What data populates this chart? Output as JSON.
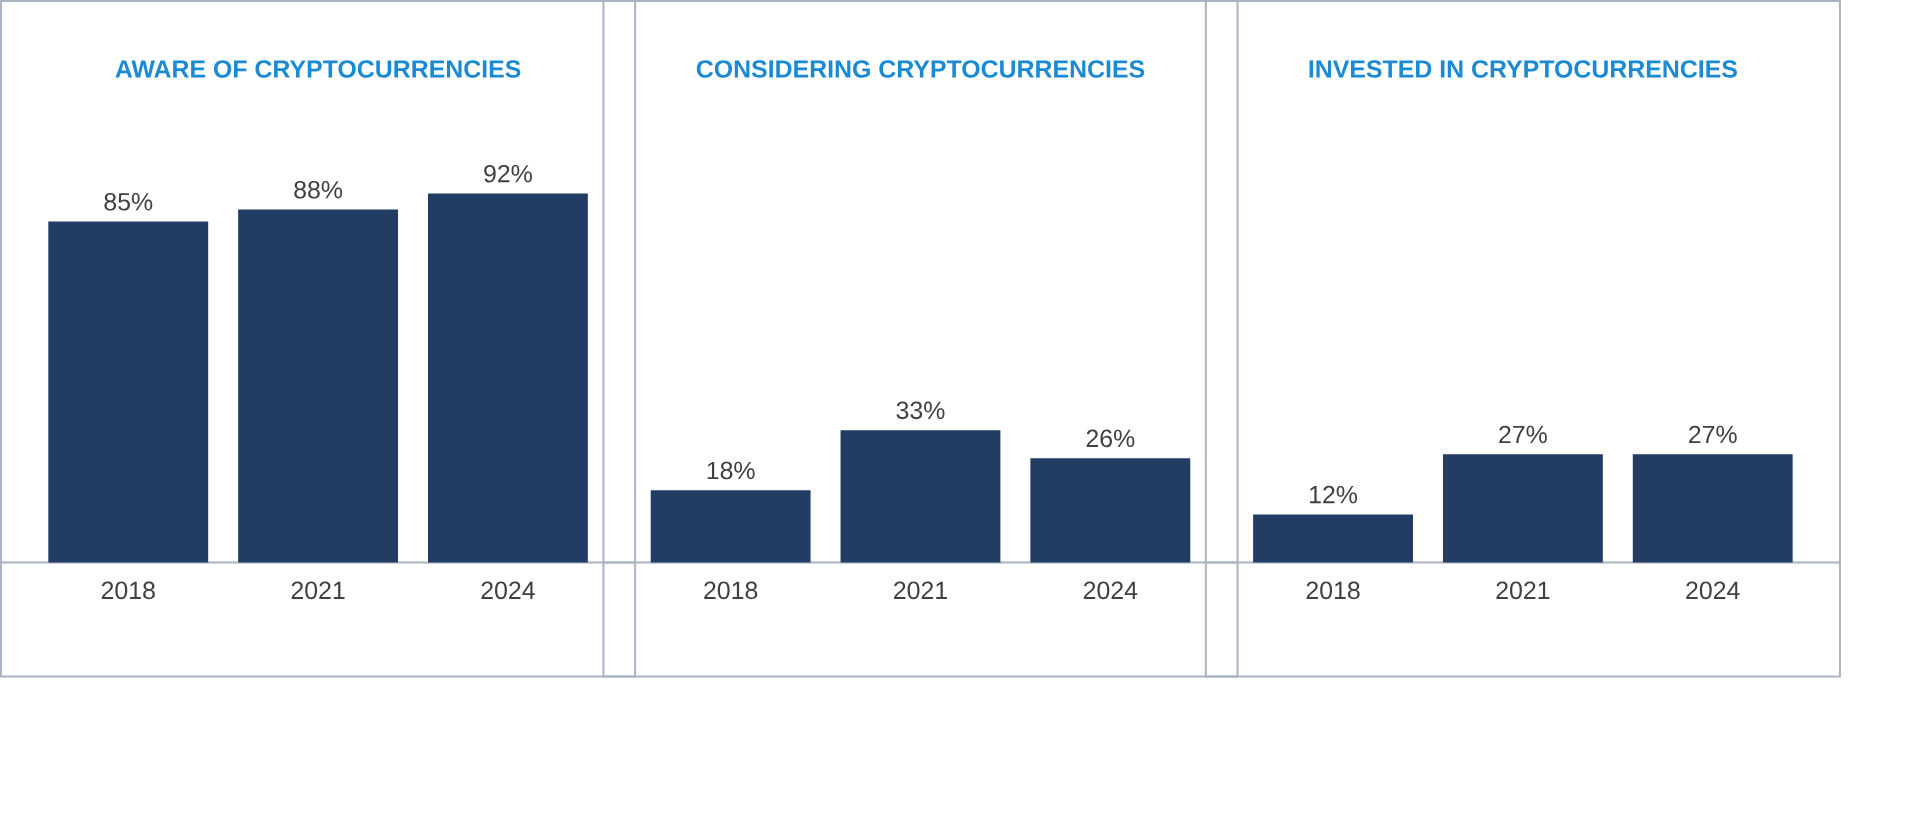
{
  "chart_data": [
    {
      "type": "bar",
      "title": "AWARE OF CRYPTOCURRENCIES",
      "categories": [
        "2018",
        "2021",
        "2024"
      ],
      "values": [
        85,
        88,
        92
      ],
      "value_labels": [
        "85%",
        "88%",
        "92%"
      ],
      "color": "#223c63",
      "ylim": [
        0,
        140
      ],
      "tick_labels": "x"
    },
    {
      "type": "bar",
      "title": "CONSIDERING CRYPTOCURRENCIES",
      "categories": [
        "2018",
        "2021",
        "2024"
      ],
      "values": [
        18,
        33,
        26
      ],
      "value_labels": [
        "18%",
        "33%",
        "26%"
      ],
      "color": "#223c63",
      "ylim": [
        0,
        140
      ],
      "tick_labels": "x"
    },
    {
      "type": "bar",
      "title": "INVESTED IN CRYPTOCURRENCIES",
      "categories": [
        "2018",
        "2021",
        "2024"
      ],
      "values": [
        12,
        27,
        27
      ],
      "value_labels": [
        "12%",
        "27%",
        "27%"
      ],
      "color": "#223c63",
      "ylim": [
        0,
        140
      ],
      "tick_labels": "x"
    }
  ]
}
